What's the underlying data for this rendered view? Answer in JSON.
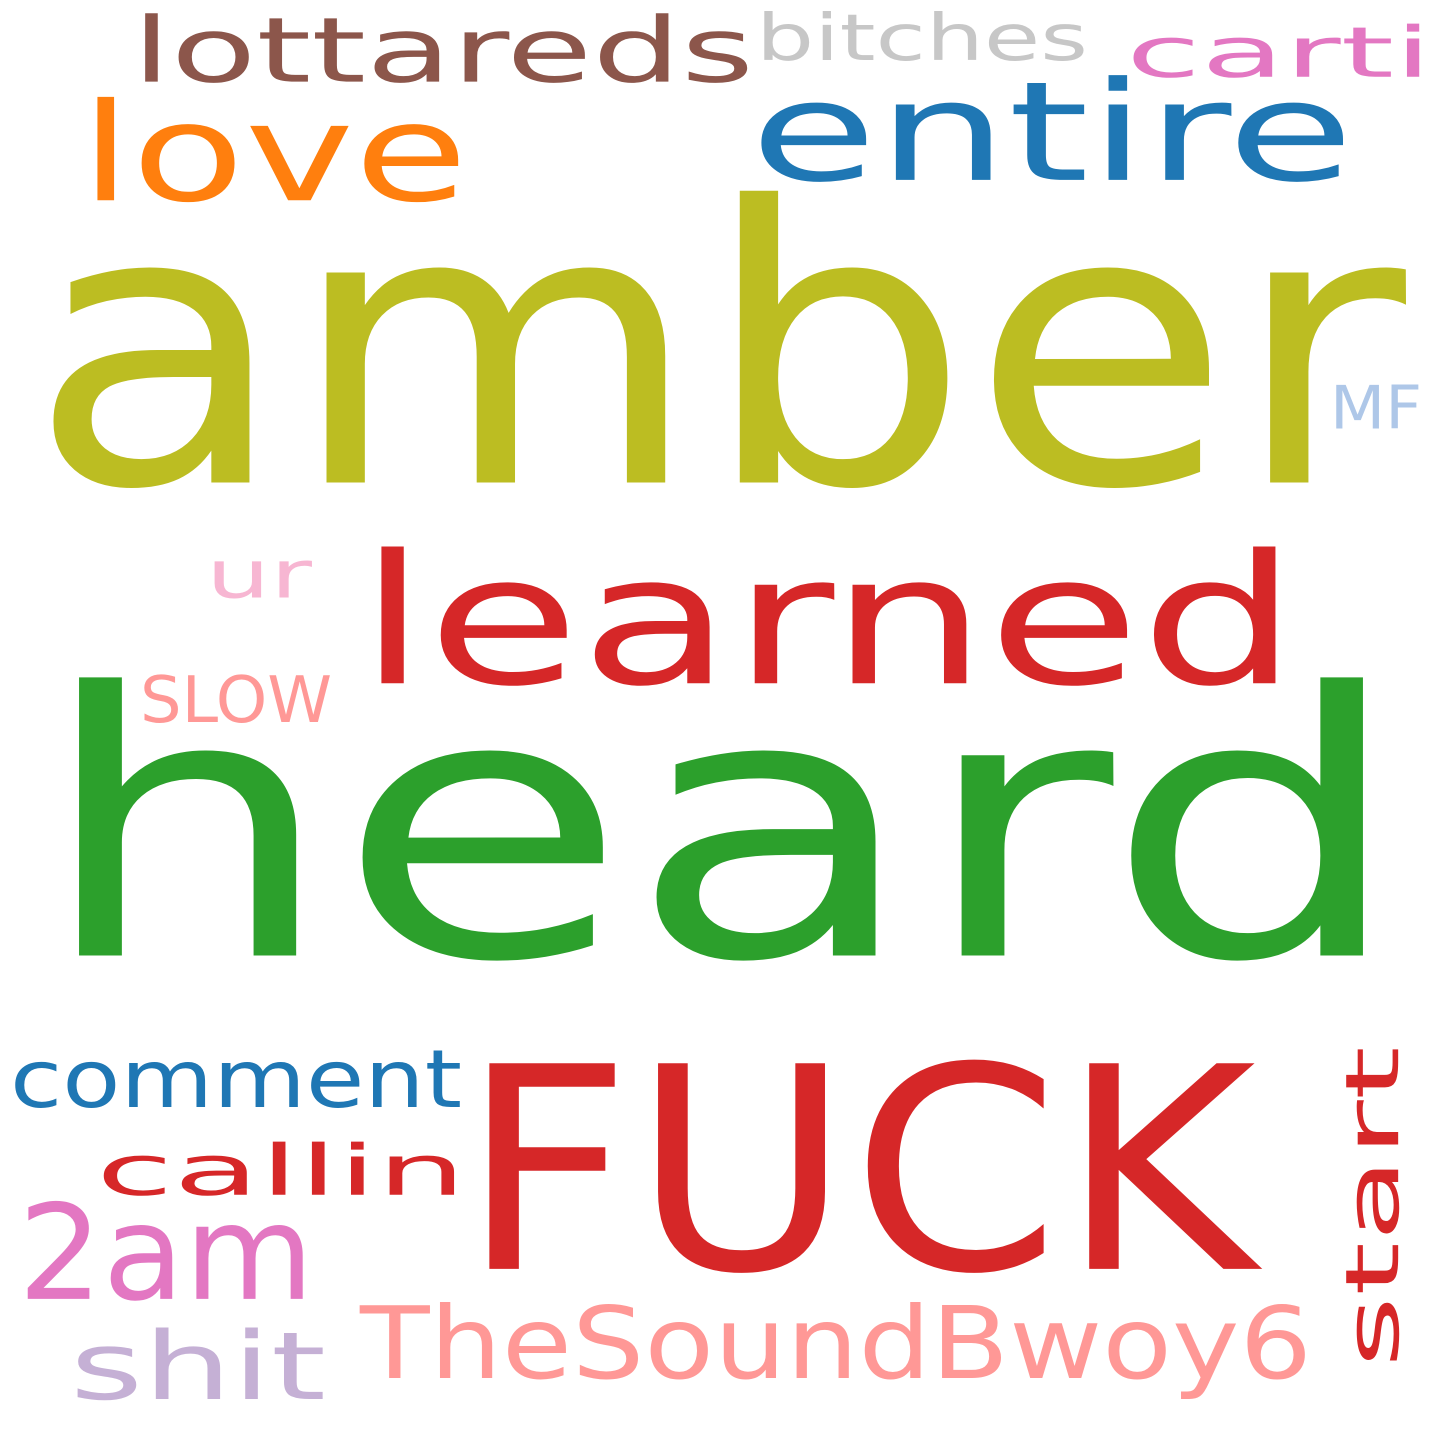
{
  "wordcloud": {
    "words": [
      {
        "id": "amber",
        "text": "amber",
        "color": "#bcbd22",
        "rotated": false
      },
      {
        "id": "heard",
        "text": "heard",
        "color": "#2ca02c",
        "rotated": false
      },
      {
        "id": "fuck",
        "text": "FUCK",
        "color": "#d62728",
        "rotated": false
      },
      {
        "id": "learned",
        "text": "learned",
        "color": "#d62728",
        "rotated": false
      },
      {
        "id": "entire",
        "text": "entire",
        "color": "#1f77b4",
        "rotated": false
      },
      {
        "id": "love",
        "text": "love",
        "color": "#ff7f0e",
        "rotated": false
      },
      {
        "id": "lottareds",
        "text": "lottareds",
        "color": "#8c564b",
        "rotated": false
      },
      {
        "id": "bitches",
        "text": "bitches",
        "color": "#c7c7c7",
        "rotated": false
      },
      {
        "id": "carti",
        "text": "carti",
        "color": "#e377c2",
        "rotated": false
      },
      {
        "id": "mf",
        "text": "MF",
        "color": "#aec7e8",
        "rotated": false
      },
      {
        "id": "ur",
        "text": "ur",
        "color": "#f7b6d2",
        "rotated": false
      },
      {
        "id": "slow",
        "text": "SLOW",
        "color": "#ff9896",
        "rotated": false
      },
      {
        "id": "comment",
        "text": "comment",
        "color": "#1f77b4",
        "rotated": false
      },
      {
        "id": "callin",
        "text": "callin",
        "color": "#d62728",
        "rotated": false
      },
      {
        "id": "2am",
        "text": "2am",
        "color": "#e377c2",
        "rotated": false
      },
      {
        "id": "shit",
        "text": "shit",
        "color": "#c5b0d5",
        "rotated": false
      },
      {
        "id": "thesoundbwoy6",
        "text": "TheSoundBwoy6",
        "color": "#ff9896",
        "rotated": false
      },
      {
        "id": "start",
        "text": "start",
        "color": "#d62728",
        "rotated": true
      }
    ]
  }
}
